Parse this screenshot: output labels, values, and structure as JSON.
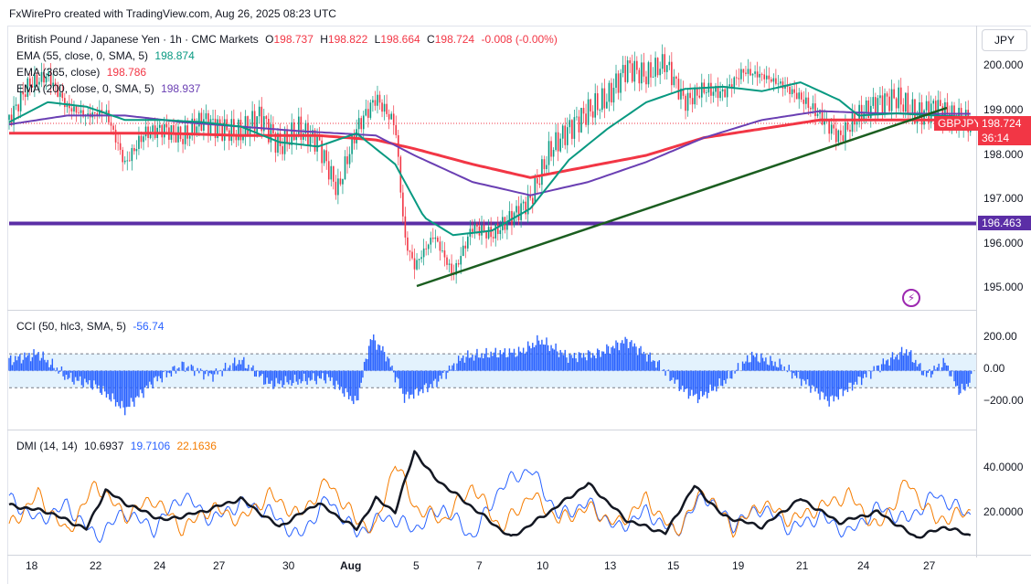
{
  "header": {
    "attribution": "FxWirePro created with TradingView.com, Aug 26, 2025 08:23 UTC"
  },
  "price_pane": {
    "symbol": "British Pound / Japanese Yen · 1h · CMC Markets",
    "ohlc": {
      "o_label": "O",
      "o": "198.737",
      "h_label": "H",
      "h": "198.822",
      "l_label": "L",
      "l": "198.664",
      "c_label": "C",
      "c": "198.724",
      "chg": "-0.008 (-0.00%)"
    },
    "indicators": [
      {
        "label": "EMA (55, close, 0, SMA, 5)",
        "value": "198.874",
        "color": "#089981"
      },
      {
        "label": "EMA (365, close)",
        "value": "198.786",
        "color": "#f23645"
      },
      {
        "label": "EMA (200, close, 0, SMA, 5)",
        "value": "198.937",
        "color": "#6a3fb3"
      }
    ],
    "currency_button": "JPY",
    "y_ticks": [
      "200.000",
      "199.000",
      "198.000",
      "197.000",
      "196.000",
      "195.000"
    ],
    "last_price_tag": {
      "symbol": "GBPJPY",
      "price": "198.724",
      "countdown": "36:14",
      "color": "#f23645"
    },
    "hline_tag": {
      "price": "196.463",
      "color": "#5b2ea6"
    }
  },
  "cci_pane": {
    "label": "CCI (50, hlc3, SMA, 5)",
    "value": "-56.74",
    "y_ticks": [
      "200.00",
      "0.00",
      "−200.00"
    ]
  },
  "dmi_pane": {
    "label": "DMI (14, 14)",
    "adx": "10.6937",
    "plus_di": "19.7106",
    "minus_di": "22.1636",
    "y_ticks": [
      "40.0000",
      "20.0000"
    ]
  },
  "x_axis": {
    "labels": [
      "18",
      "22",
      "24",
      "27",
      "30",
      "Aug",
      "5",
      "7",
      "10",
      "13",
      "15",
      "19",
      "21",
      "24",
      "27"
    ]
  },
  "chart_data": [
    {
      "type": "line",
      "title": "British Pound / Japanese Yen · 1h · CMC Markets",
      "ylim": [
        194.7,
        200.6
      ],
      "series": [
        {
          "name": "EMA (55, close, 0, SMA, 5)",
          "color": "#089981",
          "x": [
            0,
            40,
            80,
            120,
            160,
            200,
            240,
            280,
            320,
            360,
            400,
            430,
            460,
            500,
            540,
            580,
            620,
            660,
            700,
            740,
            780,
            820,
            860,
            880,
            920,
            960,
            997
          ],
          "values": [
            198.75,
            199.2,
            199.1,
            198.8,
            198.8,
            198.75,
            198.65,
            198.3,
            198.2,
            198.5,
            197.8,
            196.6,
            196.2,
            196.3,
            196.8,
            197.9,
            198.6,
            199.2,
            199.5,
            199.55,
            199.45,
            199.65,
            199.25,
            198.9,
            198.95,
            198.9,
            198.87
          ]
        },
        {
          "name": "EMA (365, close)",
          "color": "#f23645",
          "x": [
            0,
            80,
            160,
            240,
            320,
            380,
            420,
            480,
            540,
            600,
            660,
            720,
            780,
            840,
            900,
            960,
            997
          ],
          "values": [
            198.5,
            198.5,
            198.5,
            198.45,
            198.45,
            198.35,
            198.15,
            197.8,
            197.5,
            197.75,
            198.0,
            198.4,
            198.6,
            198.8,
            198.8,
            198.8,
            198.79
          ]
        },
        {
          "name": "EMA (200, close, 0, SMA, 5)",
          "color": "#6a3fb3",
          "x": [
            0,
            60,
            120,
            180,
            240,
            300,
            380,
            420,
            480,
            540,
            600,
            660,
            720,
            780,
            840,
            900,
            960,
            997
          ],
          "values": [
            198.7,
            198.9,
            198.9,
            198.75,
            198.65,
            198.55,
            198.45,
            198.0,
            197.4,
            197.1,
            197.4,
            197.85,
            198.4,
            198.8,
            199.0,
            198.95,
            198.94,
            198.94
          ]
        },
        {
          "name": "GBPJPY",
          "color": "#089981",
          "x": [
            0,
            20,
            40,
            60,
            80,
            100,
            120,
            140,
            160,
            180,
            200,
            220,
            240,
            260,
            280,
            300,
            320,
            340,
            360,
            380,
            400,
            410,
            420,
            440,
            460,
            480,
            500,
            520,
            540,
            560,
            580,
            600,
            620,
            640,
            660,
            680,
            700,
            720,
            740,
            760,
            780,
            800,
            820,
            840,
            860,
            880,
            900,
            920,
            940,
            960,
            980,
            997
          ],
          "values": [
            198.8,
            199.6,
            199.8,
            199.1,
            198.9,
            199.0,
            197.8,
            198.5,
            198.6,
            198.4,
            198.8,
            198.6,
            198.5,
            198.9,
            198.2,
            198.6,
            198.3,
            197.2,
            198.6,
            199.3,
            198.7,
            196.1,
            195.5,
            196.2,
            195.3,
            196.4,
            196.2,
            196.6,
            197.0,
            198.1,
            198.6,
            199.0,
            199.3,
            200.0,
            199.8,
            200.1,
            199.2,
            199.5,
            199.4,
            199.9,
            199.8,
            199.6,
            199.3,
            198.9,
            198.4,
            198.9,
            199.2,
            199.3,
            198.9,
            199.1,
            198.8,
            198.72
          ]
        }
      ]
    },
    {
      "type": "area",
      "title": "CCI (50, hlc3, SMA, 5)",
      "ylim": [
        -320,
        300
      ],
      "x": [
        0,
        30,
        60,
        90,
        120,
        150,
        180,
        210,
        240,
        270,
        300,
        330,
        360,
        375,
        390,
        410,
        440,
        470,
        500,
        530,
        550,
        580,
        610,
        640,
        670,
        700,
        715,
        740,
        770,
        800,
        830,
        850,
        880,
        910,
        930,
        950,
        970,
        985,
        997
      ],
      "values": [
        60,
        100,
        -40,
        -90,
        -230,
        -60,
        30,
        -30,
        60,
        -80,
        -60,
        -40,
        -190,
        200,
        100,
        -160,
        -80,
        80,
        100,
        110,
        180,
        80,
        100,
        180,
        50,
        -120,
        -160,
        -70,
        90,
        30,
        -90,
        -180,
        -60,
        60,
        120,
        -30,
        50,
        -130,
        -56.74
      ]
    },
    {
      "type": "line",
      "title": "DMI (14, 14)",
      "ylim": [
        5,
        55
      ],
      "series": [
        {
          "name": "ADX",
          "color": "#131722",
          "x": [
            0,
            40,
            80,
            100,
            120,
            160,
            200,
            240,
            280,
            320,
            360,
            380,
            400,
            420,
            440,
            480,
            520,
            560,
            600,
            640,
            680,
            710,
            740,
            780,
            820,
            860,
            900,
            940,
            970,
            997
          ],
          "values": [
            25,
            22,
            14,
            32,
            26,
            18,
            22,
            28,
            15,
            26,
            14,
            28,
            22,
            50,
            38,
            24,
            10,
            22,
            35,
            18,
            12,
            34,
            20,
            15,
            28,
            17,
            22,
            10,
            15,
            10.69
          ]
        },
        {
          "name": "+DI",
          "color": "#2962ff",
          "x": [
            0,
            30,
            60,
            90,
            120,
            150,
            180,
            210,
            240,
            270,
            300,
            330,
            360,
            390,
            420,
            450,
            480,
            510,
            540,
            570,
            600,
            630,
            660,
            690,
            720,
            750,
            780,
            810,
            840,
            870,
            900,
            930,
            960,
            997
          ],
          "values": [
            28,
            18,
            25,
            10,
            22,
            14,
            30,
            18,
            26,
            22,
            10,
            28,
            12,
            20,
            14,
            24,
            10,
            34,
            42,
            20,
            26,
            14,
            22,
            12,
            30,
            16,
            24,
            14,
            20,
            12,
            24,
            18,
            30,
            19.71
          ]
        },
        {
          "name": "-DI",
          "color": "#f57c00",
          "x": [
            0,
            30,
            60,
            90,
            120,
            150,
            180,
            210,
            240,
            270,
            300,
            330,
            360,
            380,
            400,
            420,
            450,
            480,
            510,
            540,
            570,
            600,
            630,
            660,
            690,
            720,
            750,
            780,
            810,
            840,
            870,
            900,
            930,
            960,
            997
          ],
          "values": [
            15,
            30,
            12,
            35,
            20,
            28,
            14,
            24,
            18,
            30,
            20,
            36,
            18,
            14,
            46,
            24,
            18,
            34,
            14,
            30,
            18,
            24,
            16,
            28,
            12,
            32,
            14,
            26,
            18,
            24,
            30,
            14,
            36,
            18,
            22.16
          ]
        }
      ]
    }
  ]
}
